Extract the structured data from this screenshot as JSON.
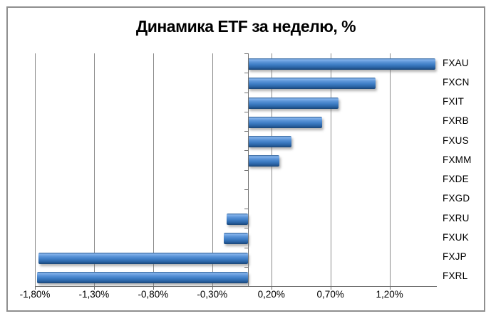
{
  "title": "Динамика ETF за неделю, %",
  "chart_data": {
    "type": "bar",
    "orientation": "horizontal",
    "title": "Динамика ETF за неделю, %",
    "xlabel": "",
    "ylabel": "",
    "categories": [
      "FXAU",
      "FXCN",
      "FXIT",
      "FXRB",
      "FXUS",
      "FXMM",
      "FXDE",
      "FXGD",
      "FXRU",
      "FXUK",
      "FXJP",
      "FXRL"
    ],
    "values": [
      1.59,
      1.08,
      0.77,
      0.63,
      0.37,
      0.27,
      0.0,
      0.0,
      -0.18,
      -0.2,
      -1.77,
      -1.78
    ],
    "value_unit": "%",
    "xlim": [
      -1.8,
      1.6
    ],
    "x_tick_values": [
      -1.8,
      -1.3,
      -0.8,
      -0.3,
      0.2,
      0.7,
      1.2
    ],
    "x_tick_labels": [
      "-1,80%",
      "-1,30%",
      "-0,80%",
      "-0,30%",
      "0,20%",
      "0,70%",
      "1,20%"
    ],
    "grid": true,
    "legend": "none"
  },
  "colors": {
    "bar_top_edge": "#2d5e94",
    "bar_light": "#85b4eb",
    "bar_mid_light": "#5c95d8",
    "bar_main": "#3f7ec6",
    "bar_mid_dark": "#2a63a4",
    "bar_dark": "#1a4576",
    "frame_border": "#8f8f8f",
    "gridline": "#8c8c8c",
    "axis": "#6f6f6f",
    "text": "#000000",
    "background": "#ffffff"
  }
}
